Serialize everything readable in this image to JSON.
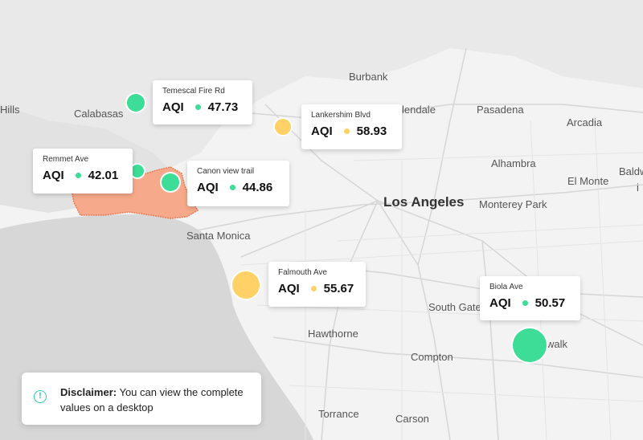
{
  "colors": {
    "green": "#3ddc97",
    "yellow": "#ffd166",
    "fire_area": "#f6a98b",
    "water": "#d7d7d7",
    "accent": "#2fc7b8"
  },
  "places": [
    {
      "name": "Burbank"
    },
    {
      "name": "lendale"
    },
    {
      "name": "Pasadena"
    },
    {
      "name": "Arcadia"
    },
    {
      "name": "Calabasas"
    },
    {
      "name": "Hills"
    },
    {
      "name": "Alhambra"
    },
    {
      "name": "El Monte"
    },
    {
      "name": "Baldw"
    },
    {
      "name": "i"
    },
    {
      "name": "Los Angeles"
    },
    {
      "name": "Monterey Park"
    },
    {
      "name": "Santa Monica"
    },
    {
      "name": "South Gate"
    },
    {
      "name": "walk"
    },
    {
      "name": "Hawthorne"
    },
    {
      "name": "Compton"
    },
    {
      "name": "Torrance"
    },
    {
      "name": "Carson"
    }
  ],
  "sensors": [
    {
      "title": "Temescal Fire Rd",
      "label": "AQI",
      "value": "47.73",
      "level": "green"
    },
    {
      "title": "Lankershim Blvd",
      "label": "AQI",
      "value": "58.93",
      "level": "yellow"
    },
    {
      "title": "Remmet Ave",
      "label": "AQI",
      "value": "42.01",
      "level": "green"
    },
    {
      "title": "Canon view trail",
      "label": "AQI",
      "value": "44.86",
      "level": "green"
    },
    {
      "title": "Falmouth Ave",
      "label": "AQI",
      "value": "55.67",
      "level": "yellow"
    },
    {
      "title": "Biola Ave",
      "label": "AQI",
      "value": "50.57",
      "level": "green"
    }
  ],
  "disclaimer": {
    "icon": "info-icon",
    "icon_glyph": "!",
    "bold": "Disclaimer:",
    "text": " You can view the complete values on a desktop"
  }
}
